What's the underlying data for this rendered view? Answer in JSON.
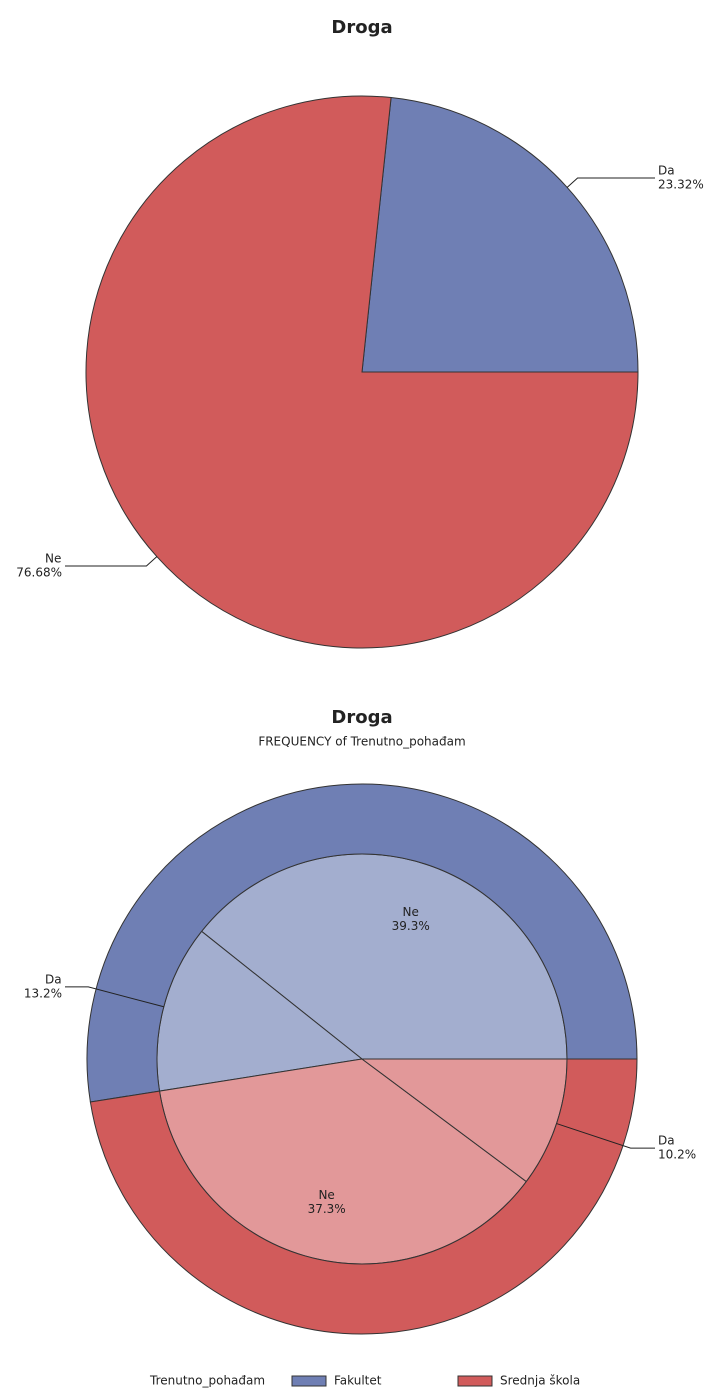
{
  "chart_data": [
    {
      "type": "pie",
      "title": "Droga",
      "categories": [
        "Da",
        "Ne"
      ],
      "values": [
        23.32,
        76.68
      ],
      "value_labels": [
        "23.32%",
        "76.68%"
      ],
      "colors": [
        "#6f7fb4",
        "#d15b5b"
      ]
    },
    {
      "type": "nested_pie",
      "title": "Droga",
      "subtitle": "FREQUENCY of Trenutno_pohađam",
      "legend_title": "Trenutno_pohađam",
      "categories": [
        "Ne",
        "Da"
      ],
      "series": [
        {
          "name": "Fakultet",
          "color": "#6f7fb4",
          "inner_color": "#a3aecf",
          "values": [
            39.3,
            13.2
          ],
          "value_labels": [
            "39.3%",
            "13.2%"
          ]
        },
        {
          "name": "Srednja škola",
          "color": "#d15b5b",
          "inner_color": "#e29899",
          "values": [
            37.3,
            10.2
          ],
          "value_labels": [
            "37.3%",
            "10.2%"
          ]
        }
      ]
    }
  ]
}
